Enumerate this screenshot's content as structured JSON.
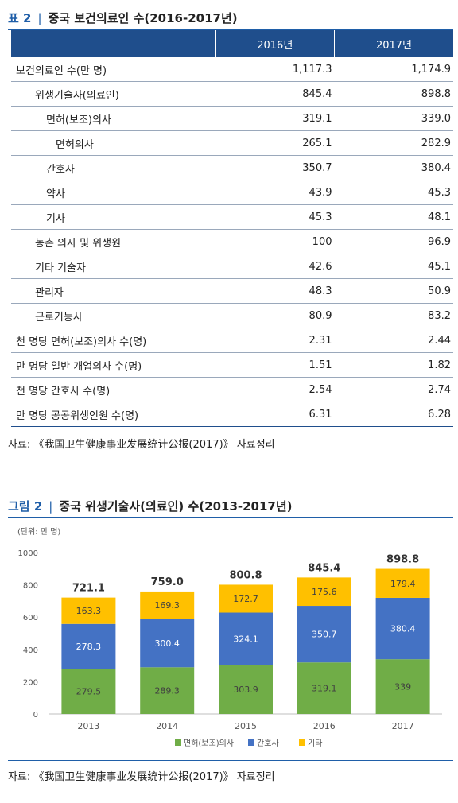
{
  "table": {
    "title_num": "표 2",
    "title_sep": "|",
    "title": "중국 보건의료인 수(2016-2017년)",
    "headers": [
      "",
      "2016년",
      "2017년"
    ],
    "rows": [
      {
        "label": "보건의료인 수(만 명)",
        "v2016": "1,117.3",
        "v2017": "1,174.9",
        "indent": 0
      },
      {
        "label": "위생기술사(의료인)",
        "v2016": "845.4",
        "v2017": "898.8",
        "indent": 1
      },
      {
        "label": "면허(보조)의사",
        "v2016": "319.1",
        "v2017": "339.0",
        "indent": 2
      },
      {
        "label": "면허의사",
        "v2016": "265.1",
        "v2017": "282.9",
        "indent": 3
      },
      {
        "label": "간호사",
        "v2016": "350.7",
        "v2017": "380.4",
        "indent": 2
      },
      {
        "label": "약사",
        "v2016": "43.9",
        "v2017": "45.3",
        "indent": 2
      },
      {
        "label": "기사",
        "v2016": "45.3",
        "v2017": "48.1",
        "indent": 2
      },
      {
        "label": "농촌 의사 및 위생원",
        "v2016": "100",
        "v2017": "96.9",
        "indent": 1
      },
      {
        "label": "기타 기술자",
        "v2016": "42.6",
        "v2017": "45.1",
        "indent": 1
      },
      {
        "label": "관리자",
        "v2016": "48.3",
        "v2017": "50.9",
        "indent": 1
      },
      {
        "label": "근로기능사",
        "v2016": "80.9",
        "v2017": "83.2",
        "indent": 1
      },
      {
        "label": "천 명당 면허(보조)의사 수(명)",
        "v2016": "2.31",
        "v2017": "2.44",
        "indent": 0
      },
      {
        "label": "만 명당 일반 개업의사 수(명)",
        "v2016": "1.51",
        "v2017": "1.82",
        "indent": 0
      },
      {
        "label": "천 명당 간호사 수(명)",
        "v2016": "2.54",
        "v2017": "2.74",
        "indent": 0
      },
      {
        "label": "만 명당 공공위생인원 수(명)",
        "v2016": "6.31",
        "v2017": "6.28",
        "indent": 0
      }
    ],
    "source": "자료: 《我国卫生健康事业发展统计公报(2017)》 자료정리"
  },
  "figure": {
    "title_num": "그림 2",
    "title_sep": "|",
    "title": "중국 위생기술사(의료인) 수(2013-2017년)",
    "unit": "(단위: 만 명)",
    "source": "자료: 《我国卫生健康事业发展统计公报(2017)》 자료정리"
  },
  "chart_data": {
    "type": "bar",
    "stacked": true,
    "categories": [
      "2013",
      "2014",
      "2015",
      "2016",
      "2017"
    ],
    "series": [
      {
        "name": "면허(보조)의사",
        "color": "#70ad47",
        "values": [
          279.5,
          289.3,
          303.9,
          319.1,
          339
        ],
        "labels": [
          "279.5",
          "289.3",
          "303.9",
          "319.1",
          "339"
        ]
      },
      {
        "name": "간호사",
        "color": "#4472c4",
        "values": [
          278.3,
          300.4,
          324.1,
          350.7,
          380.4
        ],
        "labels": [
          "278.3",
          "300.4",
          "324.1",
          "350.7",
          "380.4"
        ]
      },
      {
        "name": "기타",
        "color": "#ffc000",
        "values": [
          163.3,
          169.3,
          172.7,
          175.6,
          179.4
        ],
        "labels": [
          "163.3",
          "169.3",
          "172.7",
          "175.6",
          "179.4"
        ]
      }
    ],
    "totals": [
      "721.1",
      "759.0",
      "800.8",
      "845.4",
      "898.8"
    ],
    "ylim": [
      0,
      1000
    ],
    "yticks": [
      "0",
      "200",
      "400",
      "600",
      "800",
      "1000"
    ],
    "grid": false,
    "legend": "bottom"
  }
}
